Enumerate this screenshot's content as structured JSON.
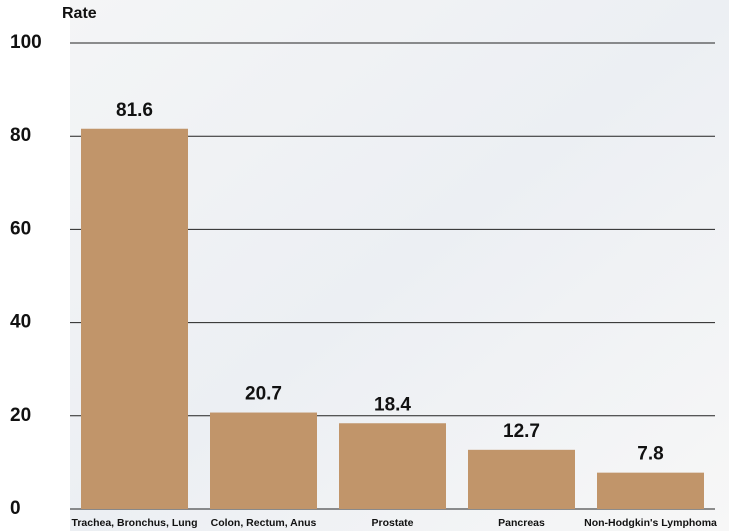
{
  "chart_data": {
    "type": "bar",
    "title": "Rate",
    "categories": [
      "Trachea, Bronchus, Lung",
      "Colon, Rectum, Anus",
      "Prostate",
      "Pancreas",
      "Non-Hodgkin's Lymphoma"
    ],
    "values": [
      81.6,
      20.7,
      18.4,
      12.7,
      7.8
    ],
    "color": "#c1956a",
    "ylim": [
      0,
      100
    ],
    "yticks": [
      0,
      20,
      40,
      60,
      80,
      100
    ],
    "grid": true
  }
}
